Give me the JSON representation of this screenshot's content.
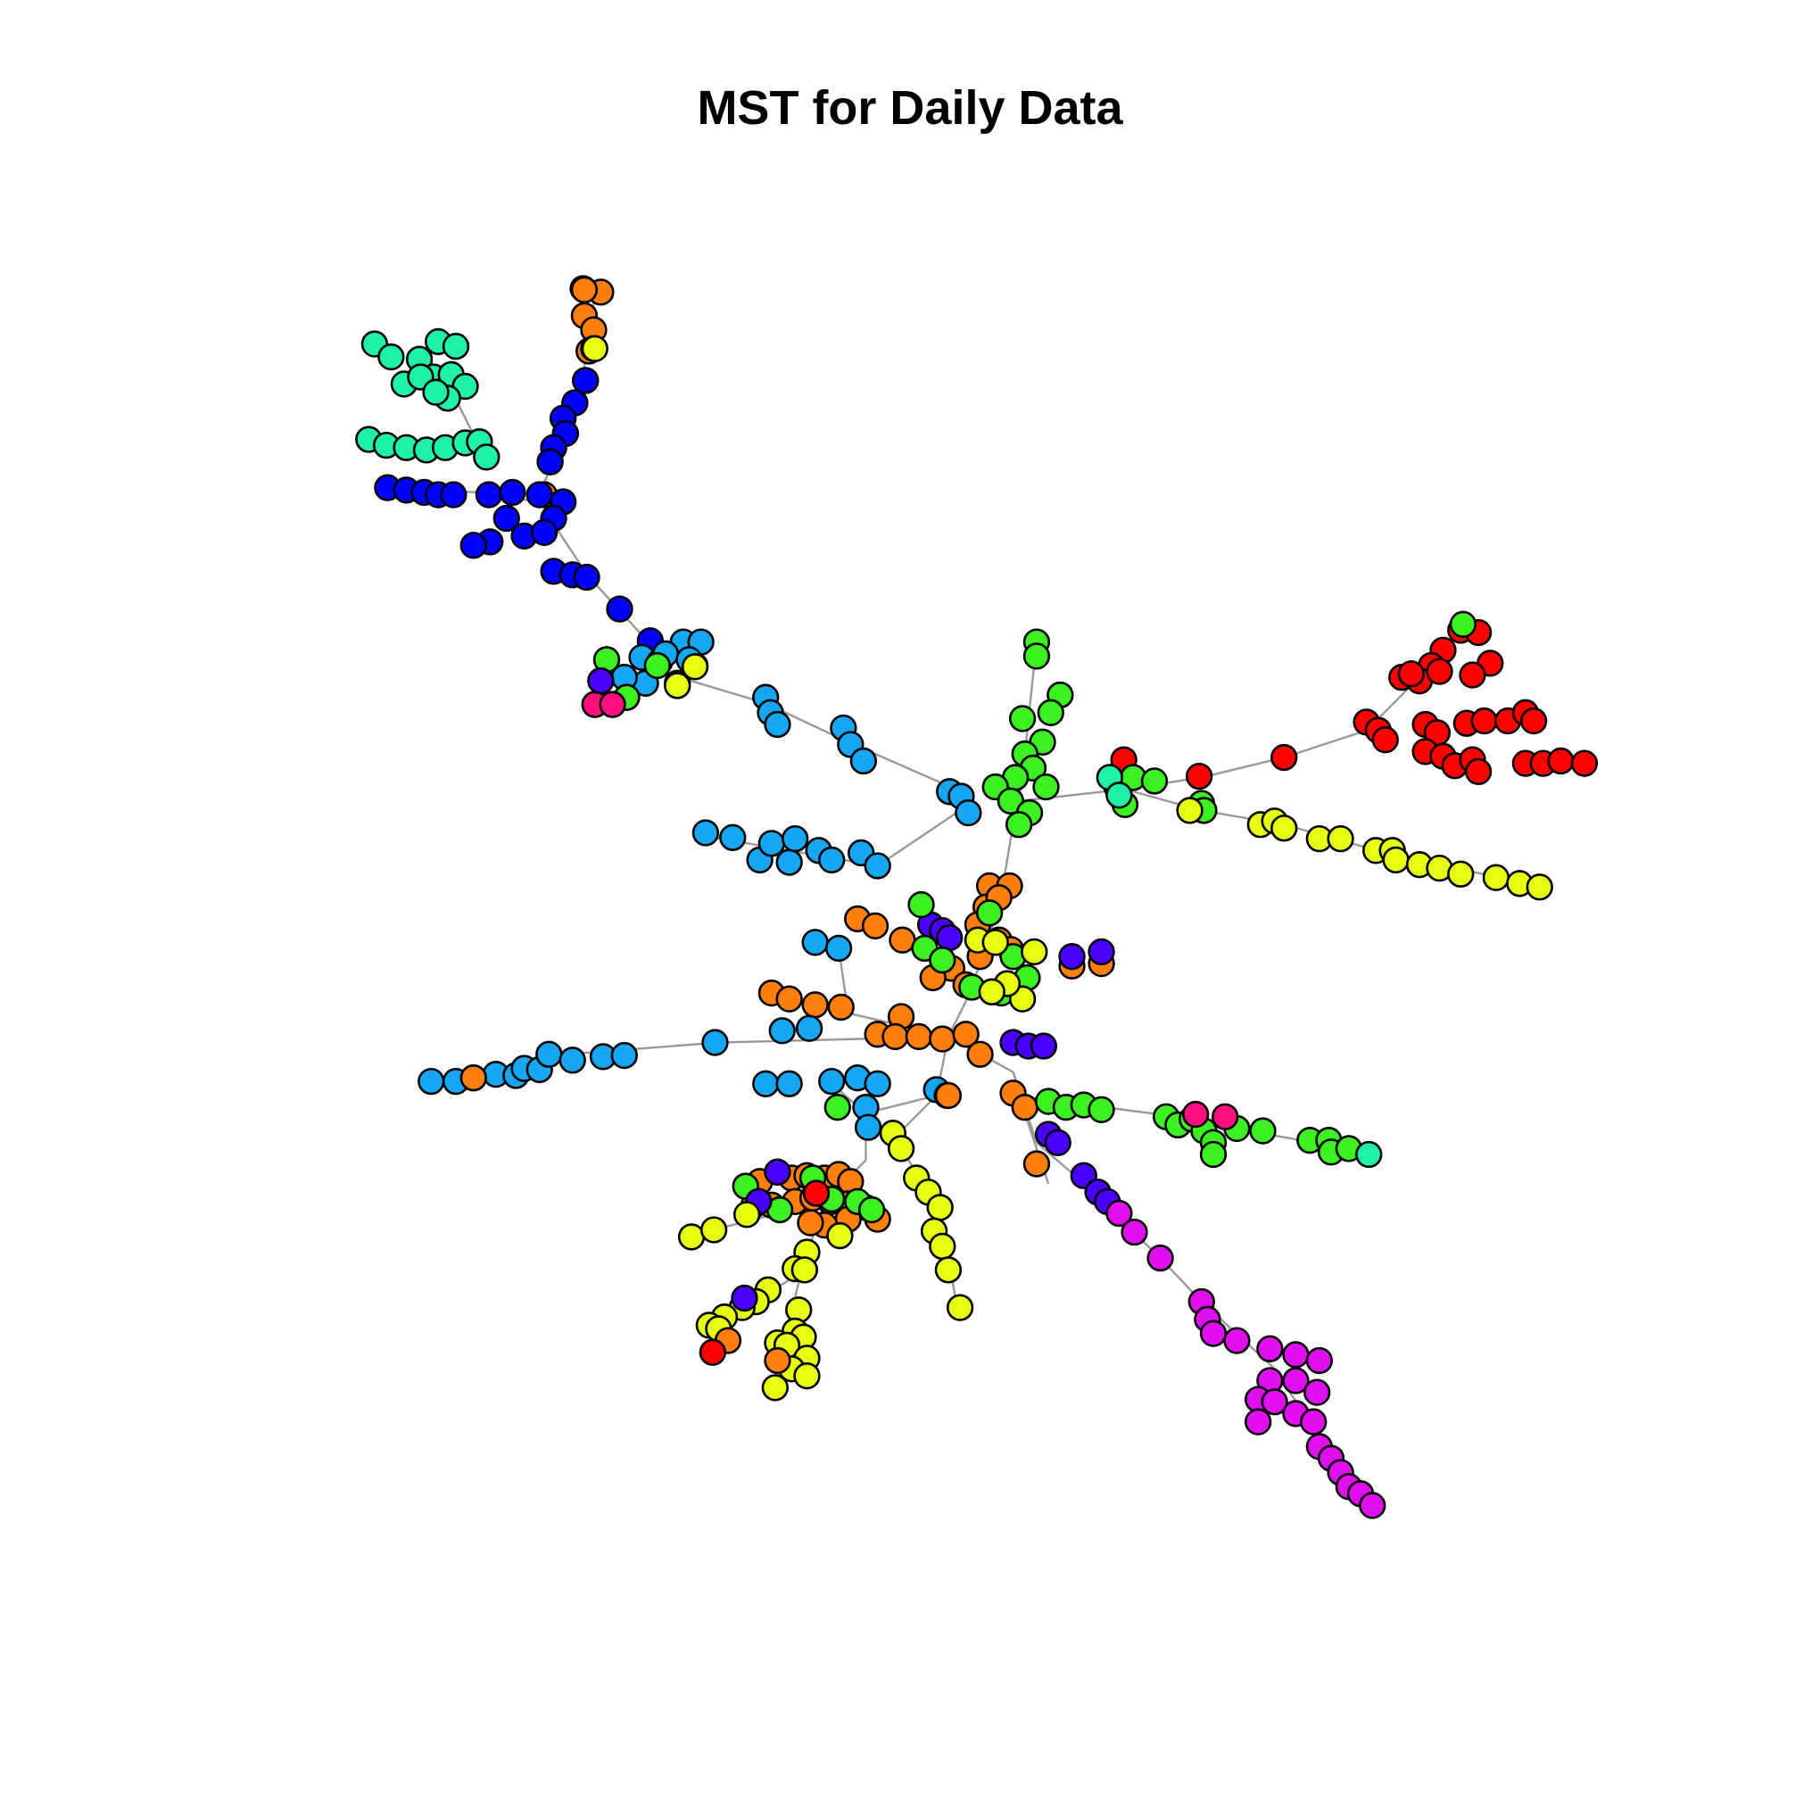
{
  "title": "MST for Daily Data",
  "chart_data": {
    "type": "network",
    "description_type": "minimum spanning tree",
    "edge_color": "#999999",
    "node_border_color": "#000000",
    "cluster_palette": {
      "red": "#ff0000",
      "orange": "#ff7f0e",
      "yellow": "#e6ff10",
      "green": "#3cf022",
      "teal": "#1ff2a6",
      "skyblue": "#16a6f2",
      "blue": "#0000ff",
      "indigo": "#4b00ff",
      "magenta": "#e00ff0",
      "pink": "#ff0f7f"
    }
  }
}
